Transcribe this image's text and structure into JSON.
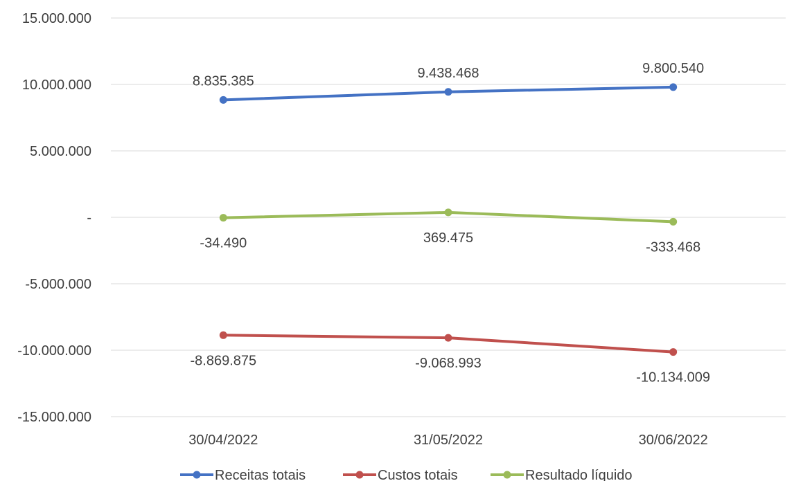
{
  "chart_data": {
    "type": "line",
    "categories": [
      "30/04/2022",
      "31/05/2022",
      "30/06/2022"
    ],
    "y_ticks": [
      15000000,
      10000000,
      5000000,
      0,
      -5000000,
      -10000000,
      -15000000
    ],
    "y_tick_labels": [
      "15.000.000",
      "10.000.000",
      "5.000.000",
      "-",
      "-5.000.000",
      "-10.000.000",
      "-15.000.000"
    ],
    "ylim": [
      -15000000,
      15000000
    ],
    "grid": true,
    "legend_position": "bottom",
    "series": [
      {
        "name": "Receitas totais",
        "color": "#4472c4",
        "values": [
          8835385,
          9438468,
          9800540
        ],
        "labels": [
          "8.835.385",
          "9.438.468",
          "9.800.540"
        ],
        "label_position": "above"
      },
      {
        "name": "Custos totais",
        "color": "#c0504d",
        "values": [
          -8869875,
          -9068993,
          -10134009
        ],
        "labels": [
          "-8.869.875",
          "-9.068.993",
          "-10.134.009"
        ],
        "label_position": "below"
      },
      {
        "name": "Resultado líquido",
        "color": "#9bbb59",
        "values": [
          -34490,
          369475,
          -333468
        ],
        "labels": [
          "-34.490",
          "369.475",
          "-333.468"
        ],
        "label_position": "below"
      }
    ]
  }
}
